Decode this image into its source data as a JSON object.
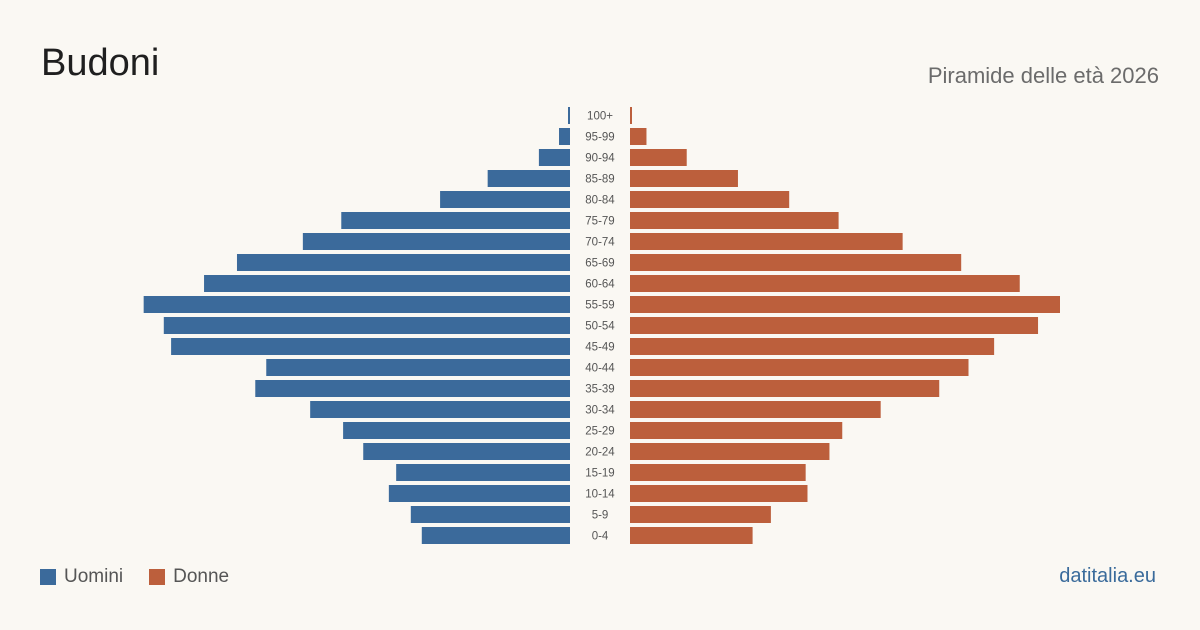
{
  "header": {
    "title": "Budoni",
    "subtitle": "Piramide delle età 2026"
  },
  "legend": {
    "men_label": "Uomini",
    "women_label": "Donne"
  },
  "footer": {
    "source": "datitalia.eu"
  },
  "colors": {
    "men": "#3b6a9b",
    "women": "#bc5f3c",
    "label": "#555555"
  },
  "chart_data": {
    "type": "bar",
    "orientation": "horizontal-pyramid",
    "categories": [
      "100+",
      "95-99",
      "90-94",
      "85-89",
      "80-84",
      "75-79",
      "70-74",
      "65-69",
      "60-64",
      "55-59",
      "50-54",
      "45-49",
      "40-44",
      "35-39",
      "30-34",
      "25-29",
      "20-24",
      "15-19",
      "10-14",
      "5-9",
      "0-4"
    ],
    "series": [
      {
        "name": "Uomini",
        "values": [
          1,
          6,
          17,
          45,
          71,
          125,
          146,
          182,
          200,
          233,
          222,
          218,
          166,
          172,
          142,
          124,
          113,
          95,
          99,
          87,
          81
        ]
      },
      {
        "name": "Donne",
        "values": [
          1,
          9,
          31,
          59,
          87,
          114,
          149,
          181,
          213,
          235,
          223,
          199,
          185,
          169,
          137,
          116,
          109,
          96,
          97,
          77,
          67
        ]
      }
    ],
    "xmax": 235,
    "grid": false,
    "legend_position": "bottom-left"
  }
}
